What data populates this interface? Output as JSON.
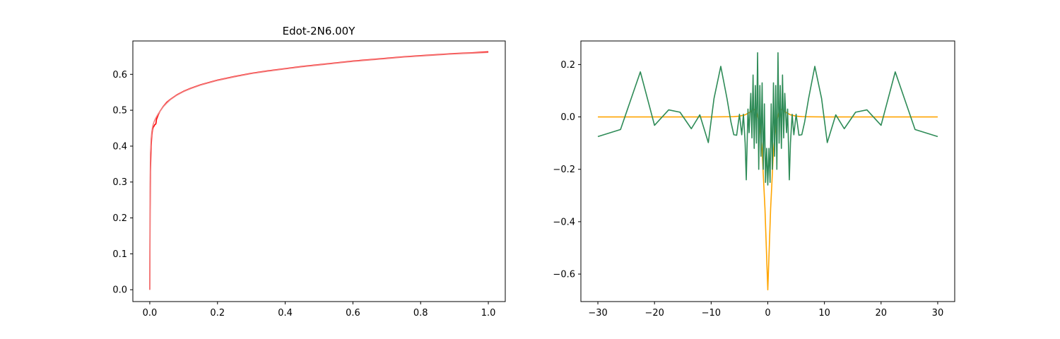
{
  "chart_data": [
    {
      "type": "line",
      "title": "Edot-2N6.00Y",
      "xlabel": "",
      "ylabel": "",
      "xlim": [
        -0.05,
        1.05
      ],
      "ylim": [
        -0.033,
        0.693
      ],
      "x_ticks": [
        0.0,
        0.2,
        0.4,
        0.6,
        0.8,
        1.0
      ],
      "x_tick_labels": [
        "0.0",
        "0.2",
        "0.4",
        "0.6",
        "0.8",
        "1.0"
      ],
      "y_ticks": [
        0.0,
        0.1,
        0.2,
        0.3,
        0.4,
        0.5,
        0.6
      ],
      "y_tick_labels": [
        "0.0",
        "0.1",
        "0.2",
        "0.3",
        "0.4",
        "0.5",
        "0.6"
      ],
      "grid": false,
      "series": [
        {
          "color": "#ff0000",
          "x": [
            0,
            0.0005,
            0.001,
            0.002,
            0.004,
            0.006,
            0.008,
            0.01,
            0.012,
            0.015,
            0.018,
            0.02,
            0.025,
            0.03,
            0.04,
            0.05,
            0.06,
            0.08,
            0.1,
            0.12,
            0.15,
            0.2,
            0.25,
            0.3,
            0.35,
            0.4,
            0.45,
            0.5,
            0.55,
            0.6,
            0.65,
            0.7,
            0.75,
            0.8,
            0.85,
            0.9,
            0.95,
            1.0
          ],
          "y": [
            0.0,
            0.1,
            0.22,
            0.33,
            0.4,
            0.43,
            0.445,
            0.452,
            0.455,
            0.46,
            0.462,
            0.475,
            0.487,
            0.497,
            0.511,
            0.522,
            0.53,
            0.543,
            0.553,
            0.561,
            0.571,
            0.584,
            0.594,
            0.603,
            0.61,
            0.616,
            0.622,
            0.627,
            0.632,
            0.637,
            0.641,
            0.645,
            0.649,
            0.652,
            0.655,
            0.658,
            0.66,
            0.663
          ]
        },
        {
          "color": "#f08080",
          "x": [
            0,
            0.0005,
            0.001,
            0.002,
            0.004,
            0.006,
            0.008,
            0.01,
            0.012,
            0.015,
            0.02,
            0.025,
            0.03,
            0.04,
            0.05,
            0.06,
            0.08,
            0.1,
            0.12,
            0.15,
            0.2,
            0.25,
            0.3,
            0.35,
            0.4,
            0.45,
            0.5,
            0.55,
            0.6,
            0.65,
            0.7,
            0.75,
            0.8,
            0.85,
            0.9,
            0.95,
            1.0
          ],
          "y": [
            0.0,
            0.2,
            0.3,
            0.38,
            0.42,
            0.44,
            0.452,
            0.46,
            0.466,
            0.473,
            0.482,
            0.49,
            0.497,
            0.51,
            0.52,
            0.529,
            0.542,
            0.552,
            0.56,
            0.57,
            0.583,
            0.593,
            0.602,
            0.609,
            0.615,
            0.621,
            0.626,
            0.631,
            0.636,
            0.64,
            0.644,
            0.648,
            0.651,
            0.654,
            0.657,
            0.659,
            0.661
          ]
        }
      ]
    },
    {
      "type": "line",
      "title": "",
      "xlabel": "",
      "ylabel": "",
      "xlim": [
        -33,
        33
      ],
      "ylim": [
        -0.705,
        0.29
      ],
      "x_ticks": [
        -30,
        -20,
        -10,
        0,
        10,
        20,
        30
      ],
      "x_tick_labels": [
        "−30",
        "−20",
        "−10",
        "0",
        "10",
        "20",
        "30"
      ],
      "y_ticks": [
        -0.6,
        -0.4,
        -0.2,
        0.0,
        0.2
      ],
      "y_tick_labels": [
        "−0.6",
        "−0.4",
        "−0.2",
        "0.0",
        "0.2"
      ],
      "grid": false,
      "series": [
        {
          "color": "#ffa500",
          "x": [
            -30,
            -20,
            -10,
            -6,
            -5,
            -4,
            -3,
            -2.5,
            -2,
            -1.5,
            -1,
            -0.5,
            0,
            0.5,
            1,
            1.5,
            2,
            2.5,
            3,
            4,
            5,
            6,
            10,
            20,
            30
          ],
          "y": [
            0.0,
            0.0,
            0.0,
            0.001,
            0.003,
            0.008,
            0.02,
            0.03,
            0.02,
            -0.02,
            -0.13,
            -0.35,
            -0.66,
            -0.35,
            -0.13,
            -0.02,
            0.02,
            0.03,
            0.02,
            0.008,
            0.003,
            0.001,
            0.0,
            0.0,
            0.0
          ]
        },
        {
          "color": "#2e8b57",
          "x": [
            -30,
            -26,
            -22.5,
            -20,
            -17.5,
            -15.5,
            -13.5,
            -12,
            -10.5,
            -9.5,
            -8.3,
            -7.2,
            -6.5,
            -6,
            -5.5,
            -5,
            -4.6,
            -4.3,
            -4,
            -3.8,
            -3.5,
            -3.3,
            -3,
            -2.8,
            -2.6,
            -2.4,
            -2.2,
            -2,
            -1.8,
            -1.6,
            -1.4,
            -1.2,
            -1,
            -0.8,
            -0.6,
            -0.4,
            -0.2,
            0,
            0.2,
            0.4,
            0.6,
            0.8,
            1,
            1.2,
            1.4,
            1.6,
            1.8,
            2,
            2.2,
            2.4,
            2.6,
            2.8,
            3,
            3.3,
            3.5,
            3.8,
            4,
            4.3,
            4.6,
            5,
            5.5,
            6,
            6.5,
            7.2,
            8.3,
            9.5,
            10.5,
            12,
            13.5,
            15.5,
            17.5,
            20,
            22.5,
            26,
            30
          ],
          "y": [
            -0.075,
            -0.048,
            0.172,
            -0.032,
            0.027,
            0.018,
            -0.045,
            0.008,
            -0.098,
            0.07,
            0.193,
            0.07,
            -0.02,
            -0.068,
            -0.07,
            0.01,
            -0.068,
            0.01,
            -0.1,
            -0.24,
            0.03,
            -0.06,
            0.09,
            -0.08,
            0.16,
            -0.12,
            0.12,
            -0.1,
            0.245,
            -0.2,
            0.12,
            -0.15,
            0.13,
            -0.2,
            0.05,
            -0.25,
            -0.12,
            -0.26,
            -0.12,
            -0.25,
            0.05,
            -0.2,
            0.13,
            -0.15,
            0.12,
            -0.2,
            0.245,
            -0.1,
            0.12,
            -0.12,
            0.16,
            -0.08,
            0.09,
            -0.06,
            0.03,
            -0.24,
            -0.1,
            0.01,
            -0.068,
            0.01,
            -0.07,
            -0.068,
            -0.02,
            0.07,
            0.193,
            0.07,
            -0.098,
            0.008,
            -0.045,
            0.018,
            0.027,
            -0.032,
            0.172,
            -0.048,
            -0.075
          ]
        }
      ]
    }
  ]
}
